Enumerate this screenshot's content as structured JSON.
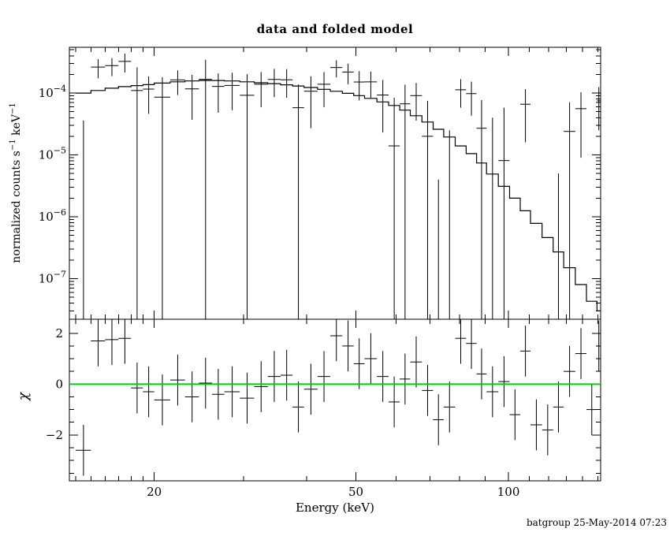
{
  "header": {
    "title": "data and folded model"
  },
  "axes": {
    "xlabel": "Energy (keV)",
    "ylabel_parts": {
      "p1": "normalized counts s",
      "sup1": "−1",
      "p2": " keV",
      "sup2": "−1"
    },
    "chi_label": "χ"
  },
  "footer": {
    "timestamp": "batgroup 25-May-2014 07:23"
  },
  "chart_data": {
    "type": "scatter",
    "subtype": "xspec-spectrum-with-step-model-and-chi-residuals",
    "title": "data and folded model",
    "xlabel": "Energy (keV)",
    "ylabel": "normalized counts s^-1 keV^-1",
    "chi_ylabel": "χ",
    "x_scale": "log",
    "y_scale_top": "log",
    "y_scale_chi": "linear",
    "xlim": [
      13.6,
      152
    ],
    "ylim_top": [
      2.2e-08,
      0.00055
    ],
    "ylim_chi": [
      -3.8,
      2.55
    ],
    "x_major_ticks": [
      20,
      50,
      100
    ],
    "x_minor_ticks": [
      14,
      15,
      16,
      17,
      18,
      19,
      30,
      40,
      60,
      70,
      80,
      90,
      110,
      120,
      130,
      140,
      150
    ],
    "y_major_ticks_top": [
      0.0001,
      1e-05,
      1e-06,
      1e-07
    ],
    "chi_major_ticks": [
      2,
      0,
      -2
    ],
    "chi_minor_ticks": [
      1.5,
      1,
      0.5,
      -0.5,
      -1,
      -1.5,
      -2.5,
      -3,
      -3.5
    ],
    "chi_err": 1.0,
    "zero_line_color": "#00cc00",
    "grid": false,
    "bins": [
      {
        "e": 14.5,
        "hw": 0.5,
        "model": 0.0001,
        "data": -4e-06,
        "err": 4e-05,
        "chi": -2.6
      },
      {
        "e": 15.5,
        "hw": 0.5,
        "model": 0.00011,
        "data": 0.000263,
        "err": 9e-05,
        "chi": 1.7
      },
      {
        "e": 16.5,
        "hw": 0.5,
        "model": 0.00012,
        "data": 0.000278,
        "err": 9e-05,
        "chi": 1.75
      },
      {
        "e": 17.5,
        "hw": 0.5,
        "model": 0.000127,
        "data": 0.000325,
        "err": 0.00011,
        "chi": 1.8
      },
      {
        "e": 18.5,
        "hw": 0.5,
        "model": 0.000132,
        "data": 0.00011,
        "err": 0.00015,
        "chi": -0.15
      },
      {
        "e": 19.5,
        "hw": 0.5,
        "model": 0.000137,
        "data": 0.000116,
        "err": 7e-05,
        "chi": -0.3
      },
      {
        "e": 20.75,
        "hw": 0.75,
        "model": 0.000145,
        "data": 8.6e-05,
        "err": 9.5e-05,
        "chi": -0.62
      },
      {
        "e": 22.25,
        "hw": 0.75,
        "model": 0.000152,
        "data": 0.000163,
        "err": 7e-05,
        "chi": 0.16
      },
      {
        "e": 23.75,
        "hw": 0.75,
        "model": 0.000157,
        "data": 0.000117,
        "err": 8e-05,
        "chi": -0.5
      },
      {
        "e": 25.25,
        "hw": 0.75,
        "model": 0.00016,
        "data": 0.000167,
        "err": 0.00018,
        "chi": 0.04
      },
      {
        "e": 26.75,
        "hw": 0.75,
        "model": 0.00016,
        "data": 0.000128,
        "err": 8e-05,
        "chi": -0.4
      },
      {
        "e": 28.5,
        "hw": 1.0,
        "model": 0.000157,
        "data": 0.000133,
        "err": 8e-05,
        "chi": -0.3
      },
      {
        "e": 30.5,
        "hw": 1.0,
        "model": 0.000152,
        "data": 9.2e-05,
        "err": 0.00011,
        "chi": -0.55
      },
      {
        "e": 32.5,
        "hw": 1.0,
        "model": 0.000147,
        "data": 0.000139,
        "err": 8e-05,
        "chi": -0.1
      },
      {
        "e": 34.5,
        "hw": 1.0,
        "model": 0.000142,
        "data": 0.000166,
        "err": 8e-05,
        "chi": 0.3
      },
      {
        "e": 36.5,
        "hw": 1.0,
        "model": 0.000136,
        "data": 0.000164,
        "err": 8e-05,
        "chi": 0.35
      },
      {
        "e": 38.5,
        "hw": 1.0,
        "model": 0.00013,
        "data": 5.8e-05,
        "err": 8e-05,
        "chi": -0.9
      },
      {
        "e": 40.75,
        "hw": 1.25,
        "model": 0.000123,
        "data": 0.000107,
        "err": 8e-05,
        "chi": -0.2
      },
      {
        "e": 43.25,
        "hw": 1.25,
        "model": 0.000115,
        "data": 0.000139,
        "err": 8e-05,
        "chi": 0.3
      },
      {
        "e": 45.75,
        "hw": 1.25,
        "model": 0.000107,
        "data": 0.000259,
        "err": 8e-05,
        "chi": 1.9
      },
      {
        "e": 48.25,
        "hw": 1.25,
        "model": 9.9e-05,
        "data": 0.000219,
        "err": 8e-05,
        "chi": 1.5
      },
      {
        "e": 50.75,
        "hw": 1.25,
        "model": 9.1e-05,
        "data": 0.000151,
        "err": 7.5e-05,
        "chi": 0.8
      },
      {
        "e": 53.5,
        "hw": 1.5,
        "model": 8.2e-05,
        "data": 0.000152,
        "err": 7e-05,
        "chi": 1.0
      },
      {
        "e": 56.5,
        "hw": 1.5,
        "model": 7.2e-05,
        "data": 9.3e-05,
        "err": 7e-05,
        "chi": 0.3
      },
      {
        "e": 59.5,
        "hw": 1.5,
        "model": 6.3e-05,
        "data": 1.4e-05,
        "err": 7e-05,
        "chi": -0.7
      },
      {
        "e": 62.5,
        "hw": 1.5,
        "model": 5.3e-05,
        "data": 6.7e-05,
        "err": 7e-05,
        "chi": 0.2
      },
      {
        "e": 65.75,
        "hw": 1.75,
        "model": 4.3e-05,
        "data": 9.1e-05,
        "err": 5.5e-05,
        "chi": 0.87
      },
      {
        "e": 69.25,
        "hw": 1.75,
        "model": 3.4e-05,
        "data": 2e-05,
        "err": 5.5e-05,
        "chi": -0.25
      },
      {
        "e": 72.75,
        "hw": 1.75,
        "model": 2.6e-05,
        "data": -5.1e-05,
        "err": 5.5e-05,
        "chi": -1.4
      },
      {
        "e": 76.5,
        "hw": 2.0,
        "model": 1.95e-05,
        "data": -3e-05,
        "err": 5.5e-05,
        "chi": -0.9
      },
      {
        "e": 80.5,
        "hw": 2.0,
        "model": 1.4e-05,
        "data": 0.000113,
        "err": 5.5e-05,
        "chi": 1.8
      },
      {
        "e": 84.5,
        "hw": 2.0,
        "model": 1.05e-05,
        "data": 9.8e-05,
        "err": 5.5e-05,
        "chi": 1.6
      },
      {
        "e": 88.5,
        "hw": 2.0,
        "model": 7.4e-06,
        "data": 2.7e-05,
        "err": 5e-05,
        "chi": 0.4
      },
      {
        "e": 93.0,
        "hw": 2.5,
        "model": 4.9e-06,
        "data": -1e-05,
        "err": 5e-05,
        "chi": -0.3
      },
      {
        "e": 98.0,
        "hw": 2.5,
        "model": 3.1e-06,
        "data": 8.1e-06,
        "err": 5e-05,
        "chi": 0.1
      },
      {
        "e": 103.0,
        "hw": 2.5,
        "model": 2e-06,
        "data": -5.8e-05,
        "err": 5e-05,
        "chi": -1.2
      },
      {
        "e": 108.0,
        "hw": 2.5,
        "model": 1.25e-06,
        "data": 6.6e-05,
        "err": 5e-05,
        "chi": 1.3
      },
      {
        "e": 113.5,
        "hw": 3.0,
        "model": 7.8e-07,
        "data": -7.9e-05,
        "err": 5e-05,
        "chi": -1.6
      },
      {
        "e": 119.5,
        "hw": 3.0,
        "model": 4.6e-07,
        "data": -8.5e-05,
        "err": 4.75e-05,
        "chi": -1.8
      },
      {
        "e": 125.5,
        "hw": 3.0,
        "model": 2.7e-07,
        "data": -4.2e-05,
        "err": 4.7e-05,
        "chi": -0.9
      },
      {
        "e": 132.0,
        "hw": 3.5,
        "model": 1.5e-07,
        "data": 2.4e-05,
        "err": 4.7e-05,
        "chi": 0.5
      },
      {
        "e": 139.0,
        "hw": 3.5,
        "model": 8e-08,
        "data": 5.6e-05,
        "err": 4.7e-05,
        "chi": 1.2
      },
      {
        "e": 146.0,
        "hw": 3.5,
        "model": 4.3e-08,
        "data": -4.7e-05,
        "err": 4.7e-05,
        "chi": -1.0
      },
      {
        "e": 150.75,
        "hw": 1.25,
        "model": 3e-08,
        "data": 7.5e-05,
        "err": 5e-05,
        "chi": 1.5
      }
    ]
  }
}
